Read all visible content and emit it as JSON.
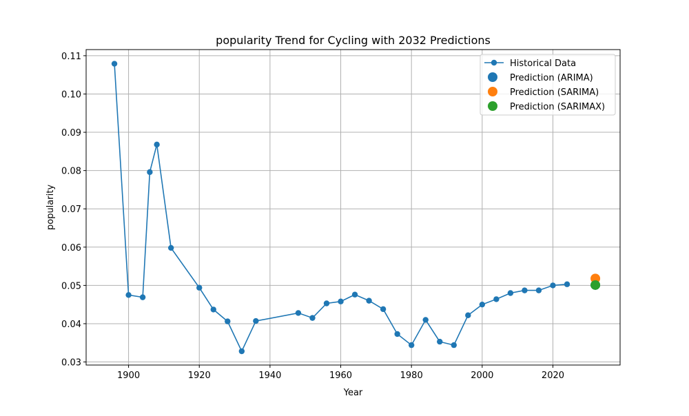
{
  "chart_data": {
    "type": "line",
    "title": "popularity Trend for Cycling with 2032 Predictions",
    "xlabel": "Year",
    "ylabel": "popularity",
    "xlim": [
      1888,
      2039
    ],
    "ylim": [
      0.0292,
      0.1116
    ],
    "xticks": [
      1900,
      1920,
      1940,
      1960,
      1980,
      2000,
      2020
    ],
    "yticks": [
      0.03,
      0.04,
      0.05,
      0.06,
      0.07,
      0.08,
      0.09,
      0.1,
      0.11
    ],
    "ytick_labels": [
      "0.03",
      "0.04",
      "0.05",
      "0.06",
      "0.07",
      "0.08",
      "0.09",
      "0.10",
      "0.11"
    ],
    "grid": true,
    "legend_position": "top-right",
    "series": [
      {
        "name": "Historical Data",
        "kind": "line-marker",
        "color": "#1f77b4",
        "x": [
          1896,
          1900,
          1904,
          1906,
          1908,
          1912,
          1920,
          1924,
          1928,
          1932,
          1936,
          1948,
          1952,
          1956,
          1960,
          1964,
          1968,
          1972,
          1976,
          1980,
          1984,
          1988,
          1992,
          1996,
          2000,
          2004,
          2008,
          2012,
          2016,
          2020,
          2024
        ],
        "y": [
          0.1079,
          0.0475,
          0.0469,
          0.0796,
          0.0868,
          0.0598,
          0.0494,
          0.0437,
          0.0406,
          0.0328,
          0.0407,
          0.0428,
          0.0415,
          0.0453,
          0.0458,
          0.0476,
          0.046,
          0.0438,
          0.0373,
          0.0344,
          0.041,
          0.0353,
          0.0344,
          0.0422,
          0.045,
          0.0464,
          0.048,
          0.0487,
          0.0487,
          0.05,
          0.0503
        ]
      },
      {
        "name": "Prediction (ARIMA)",
        "kind": "point",
        "color": "#1f77b4",
        "x": [
          2032
        ],
        "y": [
          0.0501
        ]
      },
      {
        "name": "Prediction (SARIMA)",
        "kind": "point",
        "color": "#ff7f0e",
        "x": [
          2032
        ],
        "y": [
          0.0518
        ]
      },
      {
        "name": "Prediction (SARIMAX)",
        "kind": "point",
        "color": "#2ca02c",
        "x": [
          2032
        ],
        "y": [
          0.0501
        ]
      }
    ]
  }
}
